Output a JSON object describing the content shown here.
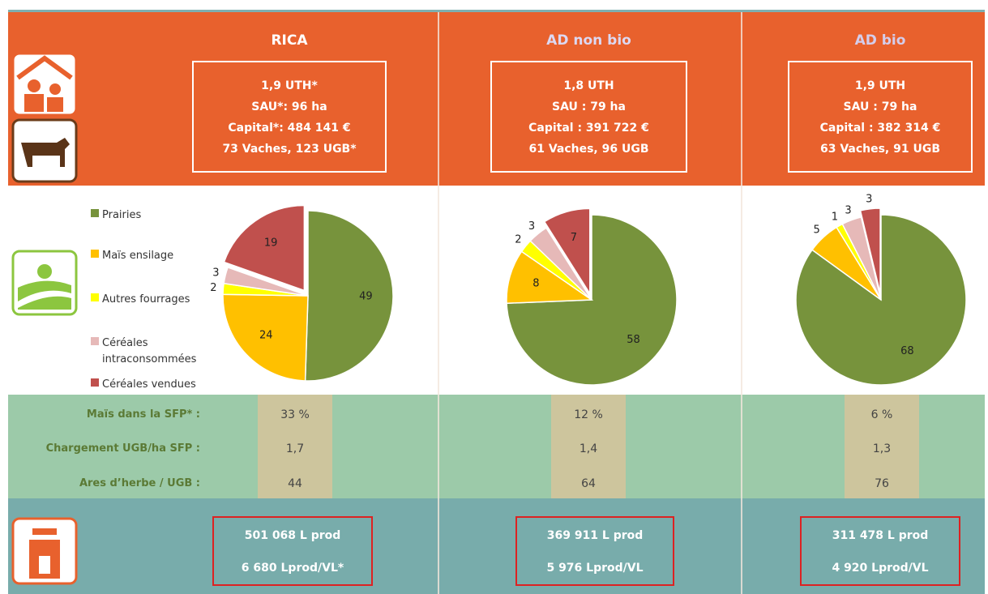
{
  "columns": [
    {
      "title": "RICA",
      "lines": [
        "1,9 UTH*",
        "SAU*: 96 ha",
        "Capital*: 484 141 €",
        "73 Vaches, 123 UGB*"
      ],
      "indicators": [
        "33 %",
        "1,7",
        "44"
      ],
      "production": [
        "501 068 L prod",
        "6 680 Lprod/VL*"
      ]
    },
    {
      "title": "AD non bio",
      "lines": [
        "1,8 UTH",
        "SAU : 79 ha",
        "Capital : 391 722 €",
        "61 Vaches, 96 UGB"
      ],
      "indicators": [
        "12 %",
        "1,4",
        "64"
      ],
      "production": [
        "369 911  L prod",
        "5 976 Lprod/VL"
      ]
    },
    {
      "title": "AD bio",
      "lines": [
        "1,9 UTH",
        "SAU : 79 ha",
        "Capital : 382 314 €",
        "63 Vaches, 91 UGB"
      ],
      "indicators": [
        "6 %",
        "1,3",
        "76"
      ],
      "production": [
        "311 478  L prod",
        "4 920 Lprod/VL"
      ]
    }
  ],
  "indicator_labels": [
    "Maïs dans la SFP* :",
    "Chargement UGB/ha SFP :",
    "Ares d’herbe / UGB :"
  ],
  "chart_data": [
    {
      "type": "pie",
      "categories": [
        "Prairies",
        "Maïs ensilage",
        "Autres fourrages",
        "Céréales intraconsommées",
        "Céréales vendues"
      ],
      "values": [
        49,
        24,
        2,
        3,
        19
      ],
      "colors": [
        "#77933c",
        "#ffc000",
        "#ffff00",
        "#e6b9b8",
        "#c0504d"
      ],
      "legend": "left"
    },
    {
      "type": "pie",
      "categories": [
        "Prairies",
        "Maïs ensilage",
        "Autres fourrages",
        "Céréales intraconsommées",
        "Céréales vendues"
      ],
      "values": [
        58,
        8,
        2,
        3,
        7
      ],
      "colors": [
        "#77933c",
        "#ffc000",
        "#ffff00",
        "#e6b9b8",
        "#c0504d"
      ]
    },
    {
      "type": "pie",
      "categories": [
        "Prairies",
        "Maïs ensilage",
        "Autres fourrages",
        "Céréales intraconsommées",
        "Céréales vendues"
      ],
      "values": [
        68,
        5,
        1,
        3,
        3
      ],
      "colors": [
        "#77933c",
        "#ffc000",
        "#ffff00",
        "#e6b9b8",
        "#c0504d"
      ]
    }
  ]
}
